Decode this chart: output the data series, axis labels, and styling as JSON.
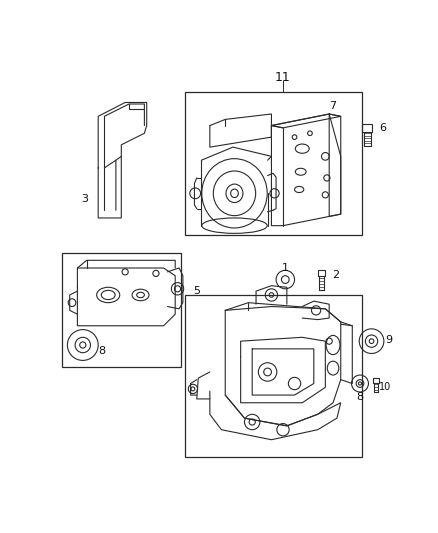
{
  "background_color": "#ffffff",
  "line_color": "#2a2a2a",
  "label_color": "#111111",
  "fig_width": 4.38,
  "fig_height": 5.33,
  "dpi": 100
}
